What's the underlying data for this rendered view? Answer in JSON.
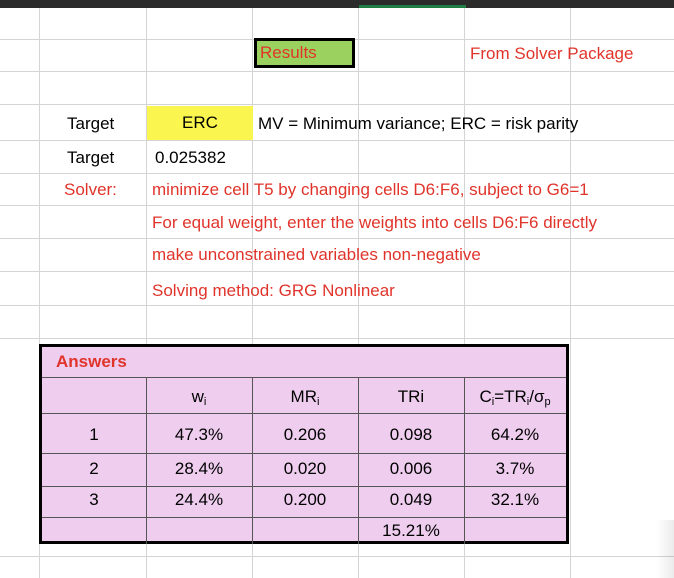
{
  "sheet": {
    "results_label": "Results",
    "source_label": "From Solver Package",
    "target_label_1": "Target",
    "target_value_1": "ERC",
    "target_desc": "MV = Minimum variance; ERC = risk parity",
    "target_label_2": "Target",
    "target_value_2": "0.025382",
    "solver_label": "Solver:",
    "solver_lines": [
      "minimize cell T5 by changing cells D6:F6, subject to G6=1",
      "For equal weight, enter the weights into cells D6:F6 directly",
      "make unconstrained variables non-negative",
      "Solving method: GRG Nonlinear"
    ]
  },
  "answers": {
    "title": "Answers",
    "headers": {
      "w": "w",
      "w_sub": "i",
      "mr": "MR",
      "mr_sub": "i",
      "tr": "TRi",
      "c_pre": "C",
      "c_sub1": "i",
      "c_mid": "=TR",
      "c_sub2": "i",
      "c_slash": "/σ",
      "c_sub3": "p"
    },
    "rows": [
      {
        "id": "1",
        "w": "47.3%",
        "mr": "0.206",
        "tr": "0.098",
        "c": "64.2%"
      },
      {
        "id": "2",
        "w": "28.4%",
        "mr": "0.020",
        "tr": "0.006",
        "c": "3.7%"
      },
      {
        "id": "3",
        "w": "24.4%",
        "mr": "0.200",
        "tr": "0.049",
        "c": "32.1%"
      }
    ],
    "total_tr": "15.21%"
  },
  "colors": {
    "red_text": "#e0342b",
    "results_fill": "#9bd15e",
    "erc_fill": "#fbf64f",
    "answers_fill": "#eecdee"
  }
}
